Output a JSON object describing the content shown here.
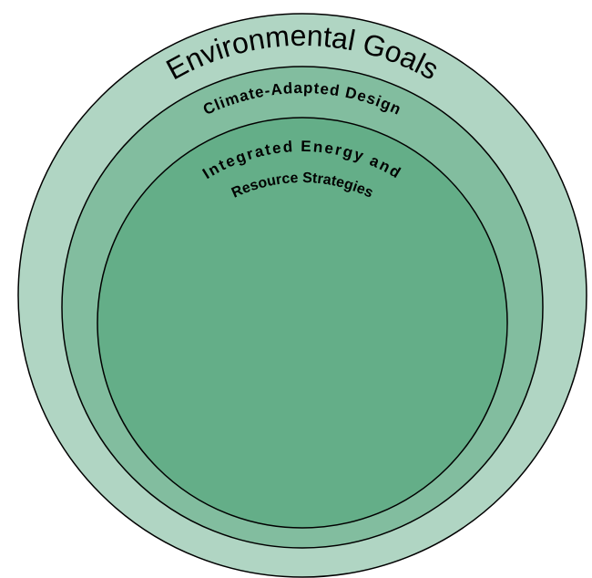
{
  "nodes": [
    {
      "label": "Environmental Goals"
    },
    {
      "label": "Climate-Adapted Design"
    },
    {
      "label": "Integrated Energy and"
    },
    {
      "label": "Resource Strategies"
    }
  ]
}
